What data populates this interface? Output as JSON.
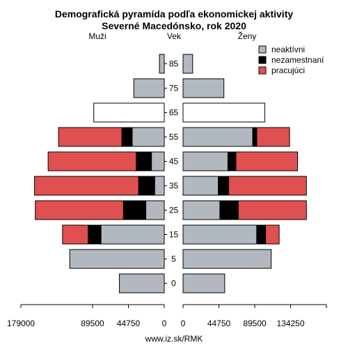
{
  "chart_data": {
    "type": "bar",
    "title_line1": "Demografická pyramída podľa ekonomickej aktivity",
    "title_line2": "Severné Macedónsko, rok 2020",
    "left_label": "Muži",
    "center_label": "Vek",
    "right_label": "Ženy",
    "source": "www.iz.sk/RMK",
    "categories": [
      "85",
      "75",
      "65",
      "55",
      "45",
      "35",
      "25",
      "15",
      "5",
      "0"
    ],
    "series": [
      {
        "name": "neaktívni",
        "color": "#b2b8c0"
      },
      {
        "name": "nezamestnaní",
        "color": "#000000"
      },
      {
        "name": "pracujúci",
        "color": "#e05050"
      }
    ],
    "male": {
      "neaktivni": [
        6000,
        38000,
        88000,
        40000,
        16000,
        12000,
        23000,
        79000,
        118000,
        56000
      ],
      "nezamestnani": [
        0,
        0,
        0,
        13000,
        19000,
        20000,
        28000,
        16000,
        0,
        0
      ],
      "pracujuci": [
        0,
        0,
        0,
        79000,
        110000,
        130000,
        110000,
        32000,
        0,
        0
      ]
    },
    "female": {
      "neaktivni": [
        12000,
        51000,
        102000,
        87000,
        56000,
        44000,
        46000,
        92000,
        110000,
        52000
      ],
      "nezamestnani": [
        0,
        0,
        0,
        5000,
        10000,
        13000,
        23000,
        11000,
        0,
        0
      ],
      "pracujuci": [
        0,
        0,
        0,
        41000,
        77000,
        97000,
        85000,
        17000,
        0,
        0
      ]
    },
    "hollow_marker_category": "65",
    "left_ticks": [
      "179000",
      "89500",
      "44750",
      "0"
    ],
    "left_tick_values": [
      179000,
      89500,
      44750,
      0
    ],
    "right_ticks": [
      "0",
      "44750",
      "89500",
      "134250"
    ],
    "right_tick_values": [
      0,
      44750,
      89500,
      134250
    ],
    "left_axis_max": 179000,
    "right_axis_max": 179000
  }
}
